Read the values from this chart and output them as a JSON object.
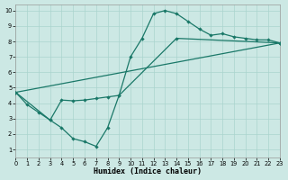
{
  "xlabel": "Humidex (Indice chaleur)",
  "bg_color": "#cce8e4",
  "grid_color": "#aad4ce",
  "line_color": "#1a7868",
  "xlim": [
    0,
    23
  ],
  "ylim": [
    0.5,
    10.4
  ],
  "xticks": [
    0,
    1,
    2,
    3,
    4,
    5,
    6,
    7,
    8,
    9,
    10,
    11,
    12,
    13,
    14,
    15,
    16,
    17,
    18,
    19,
    20,
    21,
    22,
    23
  ],
  "yticks": [
    1,
    2,
    3,
    4,
    5,
    6,
    7,
    8,
    9,
    10
  ],
  "line1_x": [
    0,
    1,
    2,
    3,
    4,
    5,
    6,
    7,
    8,
    9,
    10,
    11,
    12,
    13,
    14,
    15,
    16,
    17,
    18,
    19,
    20,
    21,
    22,
    23
  ],
  "line1_y": [
    4.7,
    3.9,
    3.4,
    2.9,
    4.2,
    4.15,
    4.2,
    4.3,
    4.4,
    4.5,
    7.0,
    8.2,
    9.8,
    10.0,
    9.8,
    9.3,
    8.8,
    8.4,
    8.5,
    8.3,
    8.2,
    8.1,
    8.1,
    7.9
  ],
  "line2_x": [
    0,
    3,
    4,
    5,
    6,
    7,
    8,
    9,
    14,
    23
  ],
  "line2_y": [
    4.7,
    2.9,
    2.4,
    1.7,
    1.5,
    1.2,
    2.4,
    4.5,
    8.2,
    7.9
  ],
  "line3_x": [
    0,
    23
  ],
  "line3_y": [
    4.7,
    7.9
  ],
  "markersize": 2.2,
  "linewidth": 0.9,
  "xlabel_fontsize": 6.0
}
